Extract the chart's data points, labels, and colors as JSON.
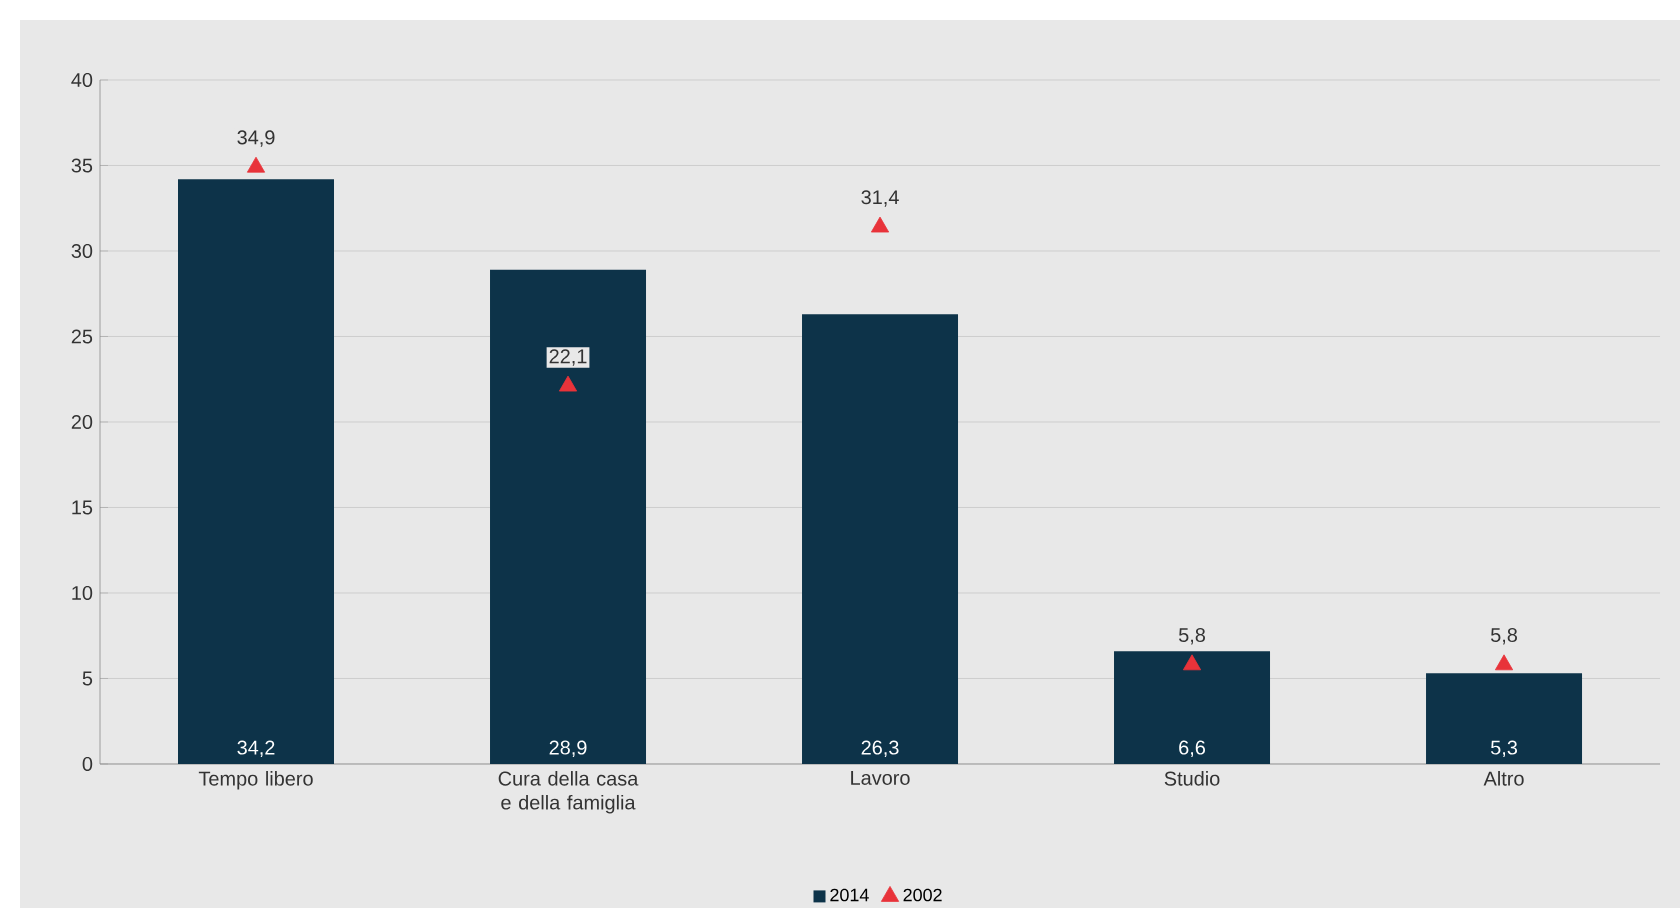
{
  "chart_data": {
    "type": "bar",
    "categories": [
      "Tempo libero",
      "Cura della casa e della famiglia",
      "Lavoro",
      "Studio",
      "Altro"
    ],
    "series": [
      {
        "name": "2014",
        "color": "#0d3349",
        "values": [
          34.2,
          28.9,
          26.3,
          6.6,
          5.3
        ],
        "value_labels": [
          "34,2",
          "28,9",
          "26,3",
          "6,6",
          "5,3"
        ]
      },
      {
        "name": "2002",
        "type": "scatter",
        "marker": "triangle",
        "color": "#e8333a",
        "values": [
          34.9,
          22.1,
          31.4,
          5.8,
          5.8
        ],
        "value_labels": [
          "34,9",
          "22,1",
          "31,4",
          "5,8",
          "5,8"
        ]
      }
    ],
    "ylim": [
      0,
      40
    ],
    "yticks": [
      0,
      5,
      10,
      15,
      20,
      25,
      30,
      35,
      40
    ],
    "grid": "y",
    "legend": "bottom"
  }
}
